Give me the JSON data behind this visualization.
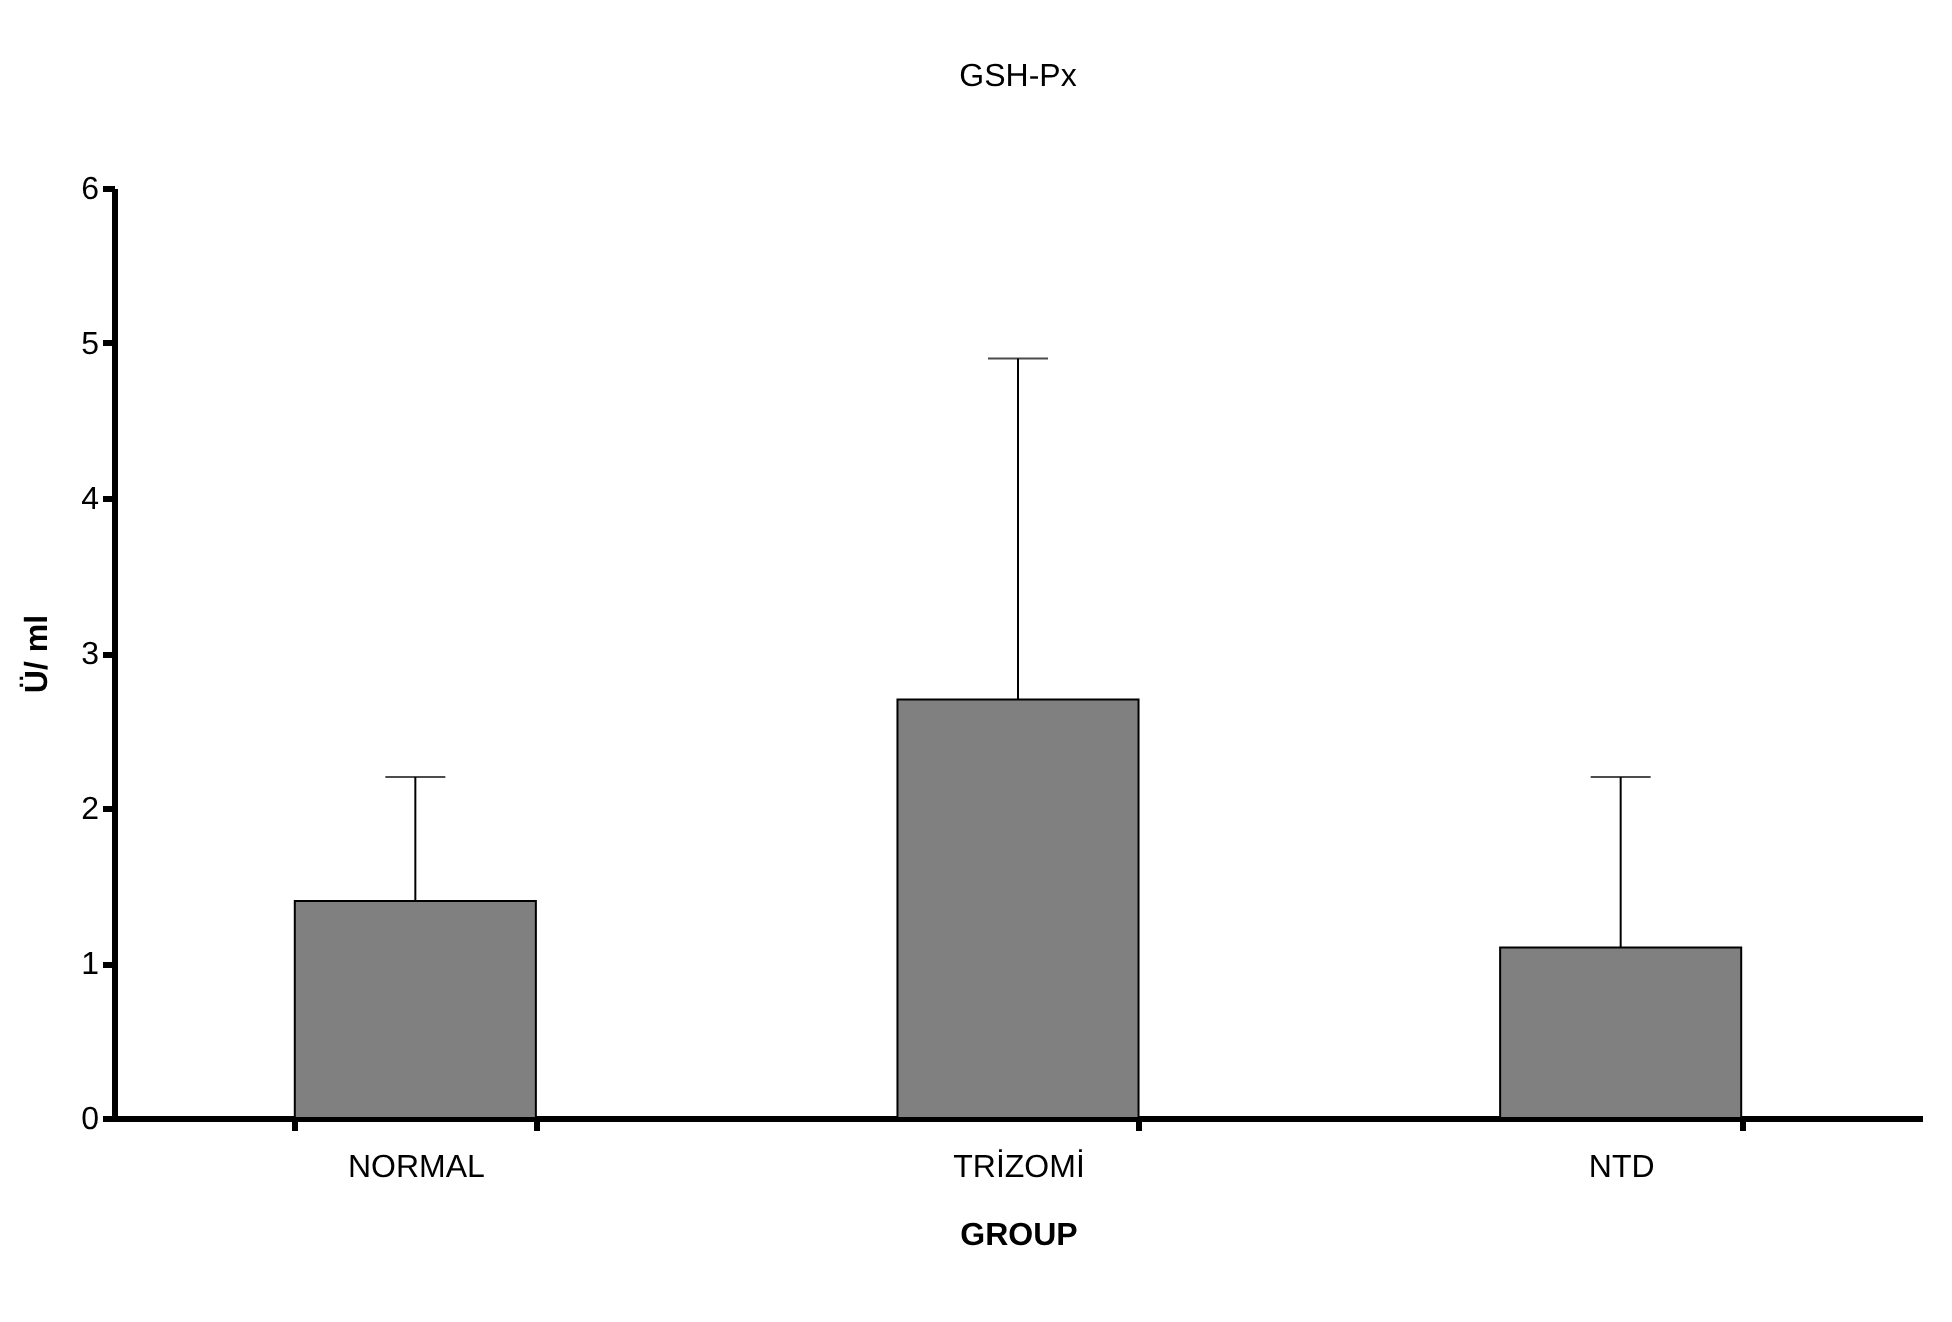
{
  "chart_data": {
    "type": "bar",
    "title": "GSH-Px",
    "xlabel": "GROUP",
    "ylabel": "Ü/ ml",
    "categories": [
      "NORMAL",
      "TRİZOMİ",
      "NTD"
    ],
    "values": [
      1.4,
      2.7,
      1.1
    ],
    "errors": [
      [
        1.4,
        2.2
      ],
      [
        2.7,
        4.9
      ],
      [
        1.1,
        2.2
      ]
    ],
    "color": "#808080",
    "ylim": [
      0,
      6
    ],
    "yticks": [
      0,
      1,
      2,
      3,
      4,
      5,
      6
    ],
    "grid": false
  }
}
